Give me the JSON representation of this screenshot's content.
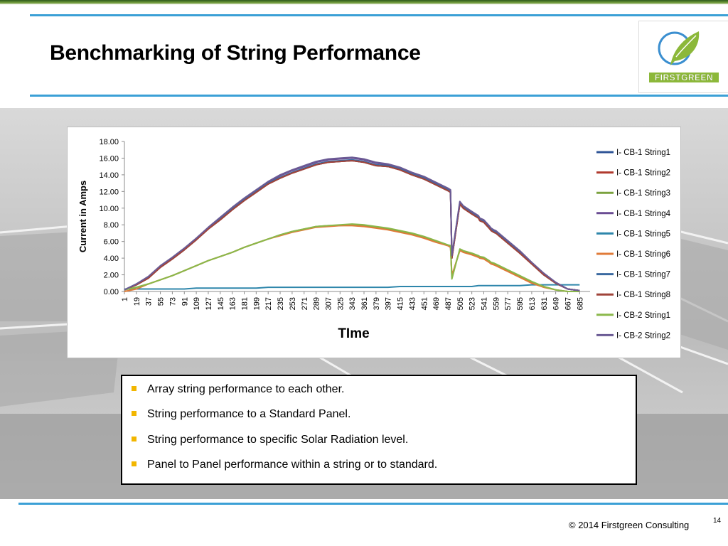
{
  "slide": {
    "title": "Benchmarking of String Performance",
    "logo_text": "FIRSTGREEN",
    "footer": "© 2014 Firstgreen Consulting",
    "page_number": "14",
    "colors": {
      "accent_rule": "#3ba0d6",
      "bullet": "#f2b600",
      "logo_green": "#8cb83a"
    }
  },
  "bullets": [
    "Array string performance to each other.",
    "String performance to a Standard Panel.",
    "String performance to specific Solar Radiation level.",
    "Panel to Panel performance within a string or to standard."
  ],
  "chart_data": {
    "type": "line",
    "xlabel": "TIme",
    "ylabel": "Current in Amps",
    "ylim": [
      0,
      18
    ],
    "yticks": [
      "0.00",
      "2.00",
      "4.00",
      "6.00",
      "8.00",
      "10.00",
      "12.00",
      "14.00",
      "16.00",
      "18.00"
    ],
    "xticks": [
      "1",
      "19",
      "37",
      "55",
      "73",
      "91",
      "109",
      "127",
      "145",
      "163",
      "181",
      "199",
      "217",
      "235",
      "253",
      "271",
      "289",
      "307",
      "325",
      "343",
      "361",
      "379",
      "397",
      "415",
      "433",
      "451",
      "469",
      "487",
      "505",
      "523",
      "541",
      "559",
      "577",
      "595",
      "613",
      "631",
      "649",
      "667",
      "685"
    ],
    "grid": false,
    "legend_position": "right",
    "x": [
      1,
      19,
      37,
      55,
      73,
      91,
      109,
      127,
      145,
      163,
      181,
      199,
      217,
      235,
      253,
      271,
      289,
      307,
      325,
      343,
      361,
      379,
      397,
      415,
      433,
      451,
      469,
      487,
      491,
      493,
      505,
      508,
      510,
      523,
      533,
      535,
      541,
      549,
      552,
      556,
      559,
      577,
      595,
      613,
      631,
      649,
      667,
      685
    ],
    "series": [
      {
        "name": "I- CB-1 String1",
        "color": "#2f5597",
        "values": [
          0.2,
          0.8,
          1.6,
          2.9,
          3.9,
          5.0,
          6.2,
          7.5,
          8.6,
          9.8,
          10.9,
          11.9,
          12.9,
          13.6,
          14.2,
          14.7,
          15.2,
          15.5,
          15.6,
          15.7,
          15.5,
          15.1,
          15.0,
          14.6,
          14.0,
          13.5,
          12.8,
          12.1,
          11.9,
          4.0,
          10.5,
          10.2,
          10.0,
          9.3,
          8.8,
          8.5,
          8.3,
          7.6,
          7.3,
          7.1,
          7.0,
          5.8,
          4.6,
          3.3,
          2.0,
          1.0,
          0.3,
          0.1
        ]
      },
      {
        "name": "I- CB-1 String2",
        "color": "#b03a2e",
        "values": [
          0.2,
          0.8,
          1.6,
          2.9,
          3.9,
          5.0,
          6.2,
          7.5,
          8.6,
          9.8,
          10.9,
          11.9,
          12.9,
          13.6,
          14.2,
          14.7,
          15.2,
          15.5,
          15.6,
          15.7,
          15.5,
          15.1,
          15.0,
          14.6,
          14.0,
          13.5,
          12.8,
          12.1,
          11.9,
          4.0,
          10.5,
          10.2,
          10.0,
          9.3,
          8.8,
          8.5,
          8.3,
          7.6,
          7.3,
          7.1,
          7.0,
          5.8,
          4.6,
          3.3,
          2.0,
          1.0,
          0.3,
          0.1
        ]
      },
      {
        "name": "I- CB-1 String3",
        "color": "#7ba23f",
        "values": [
          0.2,
          0.5,
          0.9,
          1.4,
          1.9,
          2.5,
          3.1,
          3.7,
          4.2,
          4.7,
          5.3,
          5.8,
          6.3,
          6.8,
          7.2,
          7.5,
          7.8,
          7.9,
          7.9,
          8.0,
          7.9,
          7.7,
          7.5,
          7.2,
          6.9,
          6.5,
          6.0,
          5.5,
          5.4,
          1.8,
          5.0,
          4.9,
          4.8,
          4.5,
          4.2,
          4.1,
          4.0,
          3.6,
          3.4,
          3.3,
          3.2,
          2.5,
          1.8,
          1.1,
          0.6,
          0.2,
          0.0,
          0.0
        ]
      },
      {
        "name": "I- CB-1 String4",
        "color": "#6a4c93",
        "values": [
          0.2,
          0.8,
          1.7,
          3.0,
          4.0,
          5.1,
          6.3,
          7.6,
          8.8,
          10.0,
          11.1,
          12.1,
          13.1,
          13.9,
          14.5,
          15.0,
          15.5,
          15.8,
          15.9,
          16.0,
          15.8,
          15.4,
          15.2,
          14.8,
          14.2,
          13.7,
          13.0,
          12.3,
          12.1,
          4.2,
          10.7,
          10.4,
          10.2,
          9.5,
          9.0,
          8.7,
          8.5,
          7.8,
          7.5,
          7.3,
          7.2,
          6.0,
          4.8,
          3.4,
          2.1,
          1.1,
          0.3,
          0.1
        ]
      },
      {
        "name": "I- CB-1 String5",
        "color": "#2e86ab",
        "values": [
          0.3,
          0.3,
          0.3,
          0.3,
          0.3,
          0.3,
          0.4,
          0.4,
          0.4,
          0.4,
          0.4,
          0.4,
          0.5,
          0.5,
          0.5,
          0.5,
          0.5,
          0.5,
          0.5,
          0.5,
          0.5,
          0.5,
          0.5,
          0.6,
          0.6,
          0.6,
          0.6,
          0.6,
          0.6,
          0.6,
          0.6,
          0.6,
          0.6,
          0.6,
          0.7,
          0.7,
          0.7,
          0.7,
          0.7,
          0.7,
          0.7,
          0.7,
          0.7,
          0.8,
          0.8,
          0.8,
          0.8,
          0.8
        ]
      },
      {
        "name": "I- CB-1 String6",
        "color": "#e07b39",
        "values": [
          0.0,
          0.3,
          0.9,
          1.4,
          1.9,
          2.5,
          3.1,
          3.7,
          4.2,
          4.7,
          5.3,
          5.8,
          6.3,
          6.7,
          7.1,
          7.4,
          7.7,
          7.8,
          7.9,
          7.9,
          7.8,
          7.6,
          7.4,
          7.1,
          6.8,
          6.4,
          5.9,
          5.5,
          5.3,
          1.9,
          4.9,
          4.8,
          4.7,
          4.4,
          4.1,
          4.0,
          3.9,
          3.5,
          3.3,
          3.2,
          3.1,
          2.4,
          1.7,
          1.0,
          0.5,
          0.2,
          0.0,
          0.0
        ]
      },
      {
        "name": "I- CB-1 String7",
        "color": "#3b6aa0",
        "values": [
          0.2,
          0.9,
          1.7,
          3.0,
          4.0,
          5.1,
          6.3,
          7.6,
          8.7,
          9.9,
          11.0,
          12.0,
          13.0,
          13.7,
          14.3,
          14.8,
          15.3,
          15.6,
          15.7,
          15.8,
          15.6,
          15.2,
          15.1,
          14.7,
          14.1,
          13.6,
          12.9,
          12.2,
          12.0,
          4.1,
          10.6,
          10.3,
          10.1,
          9.4,
          8.9,
          8.6,
          8.4,
          7.7,
          7.4,
          7.2,
          7.1,
          5.9,
          4.7,
          3.4,
          2.0,
          1.0,
          0.3,
          0.1
        ]
      },
      {
        "name": "I- CB-1 String8",
        "color": "#a0443a",
        "values": [
          0.2,
          0.8,
          1.6,
          2.9,
          3.9,
          5.0,
          6.2,
          7.5,
          8.6,
          9.8,
          10.9,
          11.9,
          12.9,
          13.6,
          14.2,
          14.7,
          15.2,
          15.5,
          15.6,
          15.7,
          15.5,
          15.1,
          15.0,
          14.6,
          14.0,
          13.5,
          12.8,
          12.1,
          11.9,
          4.0,
          10.5,
          10.2,
          10.0,
          9.3,
          8.8,
          8.5,
          8.3,
          7.6,
          7.3,
          7.1,
          7.0,
          5.8,
          4.6,
          3.3,
          2.0,
          1.0,
          0.3,
          0.1
        ]
      },
      {
        "name": "I- CB-2 String1",
        "color": "#8ab84a",
        "values": [
          0.2,
          0.5,
          0.9,
          1.4,
          1.9,
          2.5,
          3.1,
          3.7,
          4.2,
          4.7,
          5.3,
          5.8,
          6.3,
          6.8,
          7.2,
          7.5,
          7.8,
          7.9,
          8.0,
          8.1,
          8.0,
          7.8,
          7.6,
          7.3,
          7.0,
          6.6,
          6.1,
          5.6,
          5.5,
          1.5,
          5.1,
          5.0,
          4.9,
          4.6,
          4.3,
          4.2,
          4.1,
          3.7,
          3.5,
          3.4,
          3.3,
          2.6,
          1.9,
          1.2,
          0.6,
          0.2,
          0.0,
          0.0
        ]
      },
      {
        "name": "I- CB-2 String2",
        "color": "#6b5b95",
        "values": [
          0.2,
          0.9,
          1.8,
          3.1,
          4.1,
          5.2,
          6.4,
          7.7,
          8.9,
          10.1,
          11.2,
          12.2,
          13.2,
          14.0,
          14.6,
          15.1,
          15.6,
          15.9,
          16.0,
          16.1,
          15.9,
          15.5,
          15.3,
          14.9,
          14.3,
          13.8,
          13.1,
          12.4,
          12.2,
          4.3,
          10.8,
          10.5,
          10.3,
          9.6,
          9.1,
          8.8,
          8.6,
          7.9,
          7.6,
          7.4,
          7.3,
          6.1,
          4.9,
          3.5,
          2.2,
          1.1,
          0.3,
          0.1
        ]
      }
    ]
  }
}
